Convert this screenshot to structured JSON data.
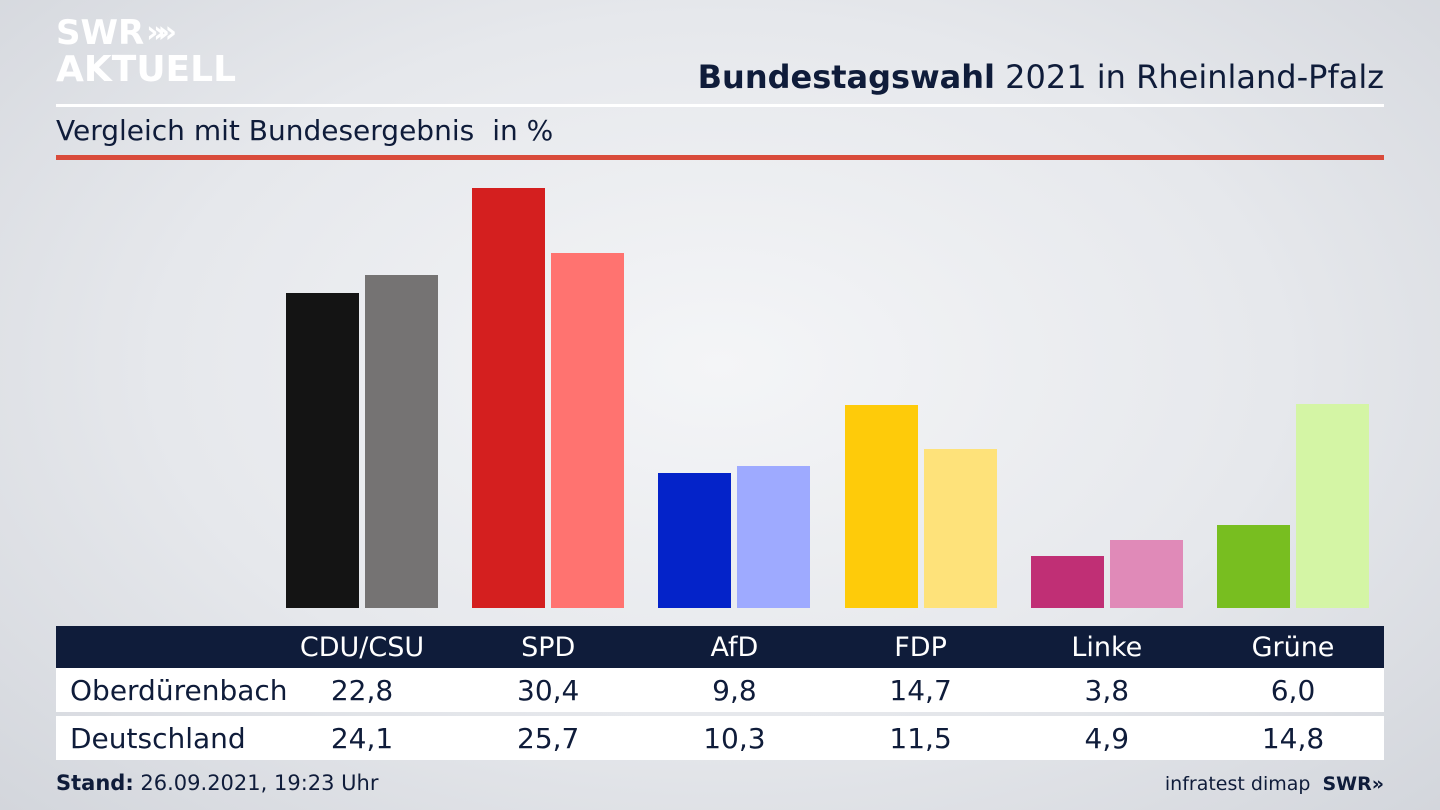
{
  "logo": {
    "line1": "SWR",
    "line2": "AKTUELL",
    "chevrons": "»"
  },
  "header": {
    "title_bold": "Bundestagswahl",
    "title_rest": " 2021 in Rheinland-Pfalz"
  },
  "subheader": {
    "text": "Vergleich mit Bundesergebnis",
    "unit": "in %"
  },
  "chart_data": {
    "type": "bar",
    "title": "Bundestagswahl 2021 in Rheinland-Pfalz",
    "subtitle": "Vergleich mit Bundesergebnis",
    "unit": "in %",
    "categories": [
      "CDU/CSU",
      "SPD",
      "AfD",
      "FDP",
      "Linke",
      "Grüne"
    ],
    "series": [
      {
        "name": "Oberdürenbach",
        "values": [
          22.8,
          30.4,
          9.8,
          14.7,
          3.8,
          6.0
        ],
        "display": [
          "22,8",
          "30,4",
          "9,8",
          "14,7",
          "3,8",
          "6,0"
        ]
      },
      {
        "name": "Deutschland",
        "values": [
          24.1,
          25.7,
          10.3,
          11.5,
          4.9,
          14.8
        ],
        "display": [
          "24,1",
          "25,7",
          "10,3",
          "11,5",
          "4,9",
          "14,8"
        ]
      }
    ],
    "colors": {
      "primary": [
        "#141414",
        "#d41f1f",
        "#0423c9",
        "#fecb0a",
        "#c02f75",
        "#78be20"
      ],
      "secondary": [
        "#757373",
        "#ff7370",
        "#9eaaff",
        "#fee27a",
        "#e08ab8",
        "#d4f5a5"
      ]
    },
    "ylim": [
      0,
      30.4
    ],
    "grid": false,
    "legend": "table-below"
  },
  "footer": {
    "stand_label": "Stand:",
    "stand_value": " 26.09.2021, 19:23 Uhr",
    "source": "infratest dimap",
    "brand": "SWR"
  }
}
